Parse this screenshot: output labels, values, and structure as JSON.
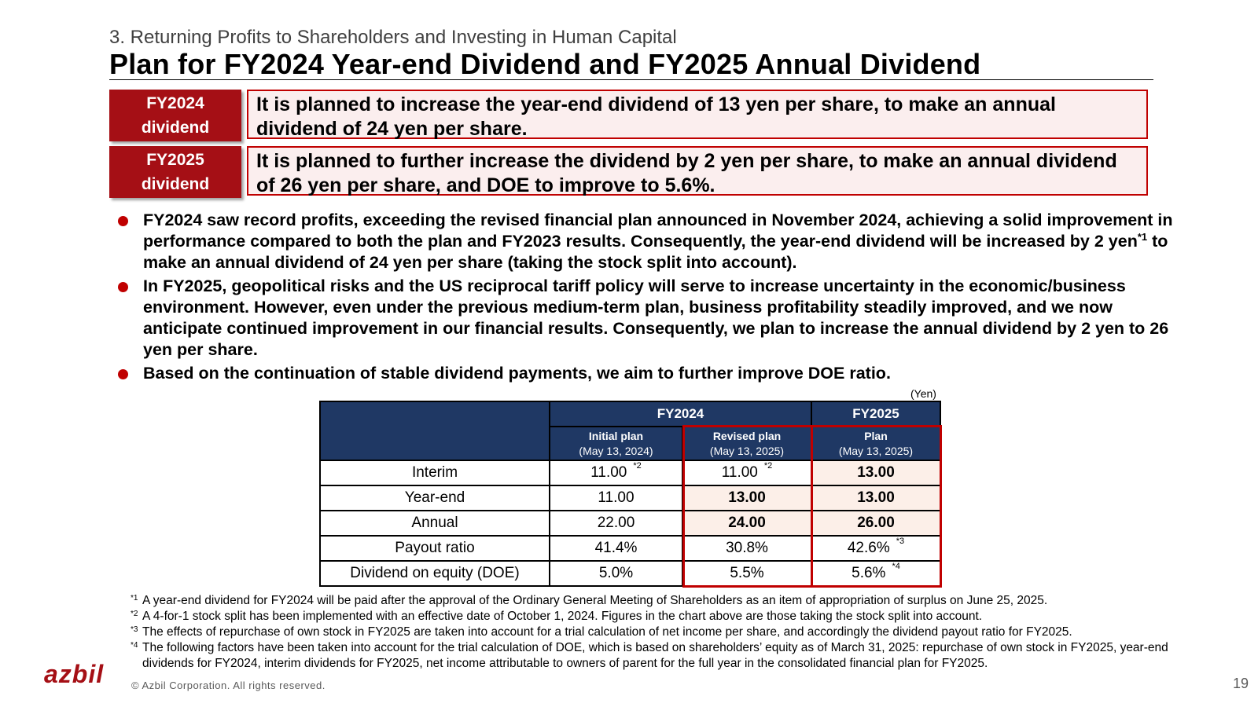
{
  "header": {
    "subtitle": "3. Returning Profits to Shareholders and Investing in Human Capital",
    "title": "Plan for FY2024 Year-end Dividend and FY2025 Annual Dividend"
  },
  "highlights": [
    {
      "tag": "FY2024\ndividend",
      "text": "It is planned to increase the year-end dividend of 13 yen per share, to make an annual dividend of 24 yen per share."
    },
    {
      "tag": "FY2025\ndividend",
      "text": "It is planned to further increase the dividend by 2 yen per share, to make an annual dividend of 26 yen per share, and DOE to improve to 5.6%."
    }
  ],
  "bullets": {
    "b1_part1": "FY2024 saw record profits, exceeding the revised financial plan announced in November 2024, achieving a solid improvement in performance compared to both the plan and FY2023 results. Consequently, the year-end dividend will be increased by 2 yen",
    "b1_note": "*1",
    "b1_part2": " to make an annual dividend of 24 yen per share (taking the stock split into account).",
    "b2": "In FY2025, geopolitical risks and the US reciprocal tariff policy will serve to increase uncertainty in the economic/business environment. However, even under the previous medium-term plan, business profitability steadily improved, and we now anticipate continued improvement in our financial results. Consequently, we plan to increase the annual dividend by 2 yen to 26 yen per share.",
    "b3": "Based on the continuation of stable dividend payments, we aim to further improve DOE ratio."
  },
  "table": {
    "unit": "(Yen)",
    "group_fy2024": "FY2024",
    "group_fy2025": "FY2025",
    "col1": {
      "title": "Initial plan",
      "date": "(May 13, 2024)"
    },
    "col2": {
      "title": "Revised plan",
      "date": "(May 13, 2025)"
    },
    "col3": {
      "title": "Plan",
      "date": "(May 13, 2025)"
    },
    "rows": [
      {
        "label": "Interim",
        "v1": "11.00",
        "n1": "*2",
        "v2": "11.00",
        "n2": "*2",
        "v3": "13.00",
        "n3": ""
      },
      {
        "label": "Year-end",
        "v1": "11.00",
        "n1": "",
        "v2": "13.00",
        "n2": "",
        "v3": "13.00",
        "n3": ""
      },
      {
        "label": "Annual",
        "v1": "22.00",
        "n1": "",
        "v2": "24.00",
        "n2": "",
        "v3": "26.00",
        "n3": ""
      },
      {
        "label": "Payout ratio",
        "v1": "41.4%",
        "n1": "",
        "v2": "30.8%",
        "n2": "",
        "v3": "42.6%",
        "n3": "*3"
      },
      {
        "label": "Dividend on equity (DOE)",
        "v1": "5.0%",
        "n1": "",
        "v2": "5.5%",
        "n2": "",
        "v3": "5.6%",
        "n3": "*4"
      }
    ]
  },
  "footnotes": [
    {
      "mark": "*1",
      "text": "A year-end dividend for FY2024 will be paid after the approval of the Ordinary General Meeting of Shareholders as an item of appropriation of surplus on June 25, 2025."
    },
    {
      "mark": "*2",
      "text": "A 4-for-1 stock split has been implemented with an effective date of October 1, 2024. Figures in the chart above are those taking the stock split into account."
    },
    {
      "mark": "*3",
      "text": "The effects of repurchase of own stock in FY2025 are taken into account for a trial calculation of net income per share, and accordingly the dividend payout ratio for FY2025."
    },
    {
      "mark": "*4",
      "text": "The following factors have been taken into account for the trial calculation of DOE, which is based on shareholders’ equity as of March 31, 2025: repurchase of own stock in FY2025, year-end dividends for FY2024, interim dividends for FY2025, net income attributable to owners of parent for the full year in the consolidated financial plan for FY2025."
    }
  ],
  "footer": {
    "logo": "azbil",
    "copyright": "© Azbil Corporation. All rights reserved.",
    "page": "19"
  },
  "colors": {
    "accent": "#a50f15",
    "table_header": "#1f3864",
    "highlight_fill": "#fcefe8",
    "border_red": "#c00000"
  }
}
